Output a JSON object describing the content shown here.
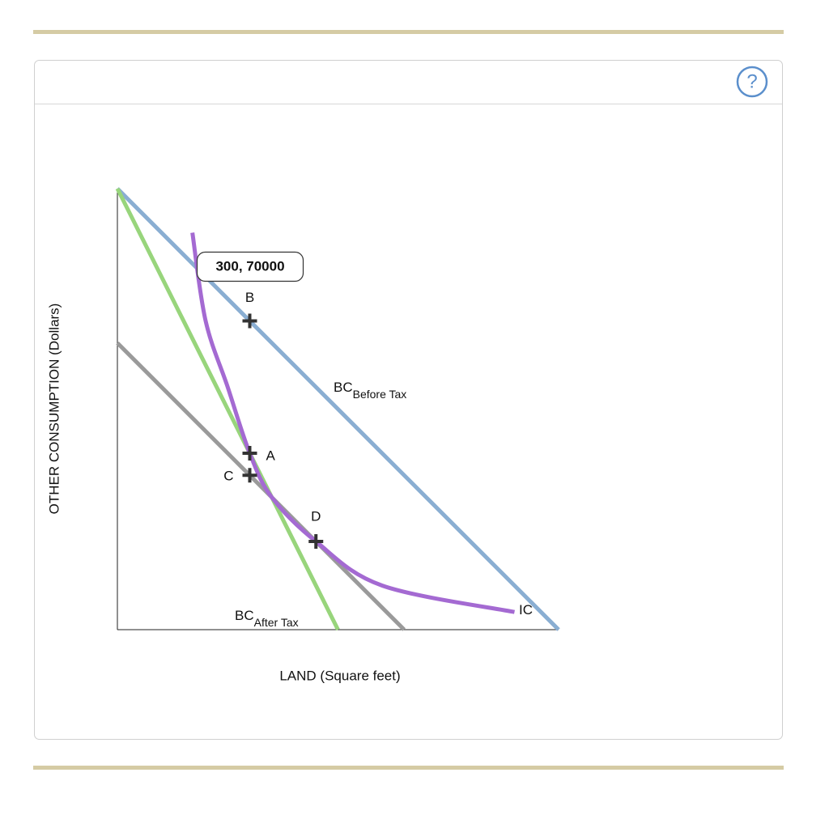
{
  "help_label": "?",
  "chart_data": {
    "type": "line",
    "x_label": "LAND (Square feet)",
    "y_label": "OTHER CONSUMPTION (Dollars)",
    "xlim": [
      0,
      1000
    ],
    "ylim": [
      0,
      100000
    ],
    "tooltip": "300, 70000",
    "series": [
      {
        "name": "BC",
        "subscript": "Before Tax",
        "color": "#8aaed2",
        "x": [
          0,
          1000
        ],
        "values": [
          100000,
          0
        ]
      },
      {
        "color": "#9a9a9a",
        "x": [
          0,
          650
        ],
        "values": [
          65000,
          0
        ]
      },
      {
        "name": "BC",
        "subscript": "After Tax",
        "color": "#98d57c",
        "x": [
          0,
          500
        ],
        "values": [
          100000,
          0
        ]
      },
      {
        "name": "IC",
        "color": "#a46ad2",
        "x": [
          170,
          200,
          250,
          300,
          350,
          450,
          600,
          900
        ],
        "values": [
          90000,
          70000,
          55000,
          40000,
          30000,
          20000,
          10000,
          4000
        ]
      }
    ],
    "points": [
      {
        "name": "B",
        "x": 300,
        "y": 70000
      },
      {
        "name": "A",
        "x": 300,
        "y": 40000
      },
      {
        "name": "C",
        "x": 300,
        "y": 35000
      },
      {
        "name": "D",
        "x": 450,
        "y": 20000
      }
    ]
  }
}
